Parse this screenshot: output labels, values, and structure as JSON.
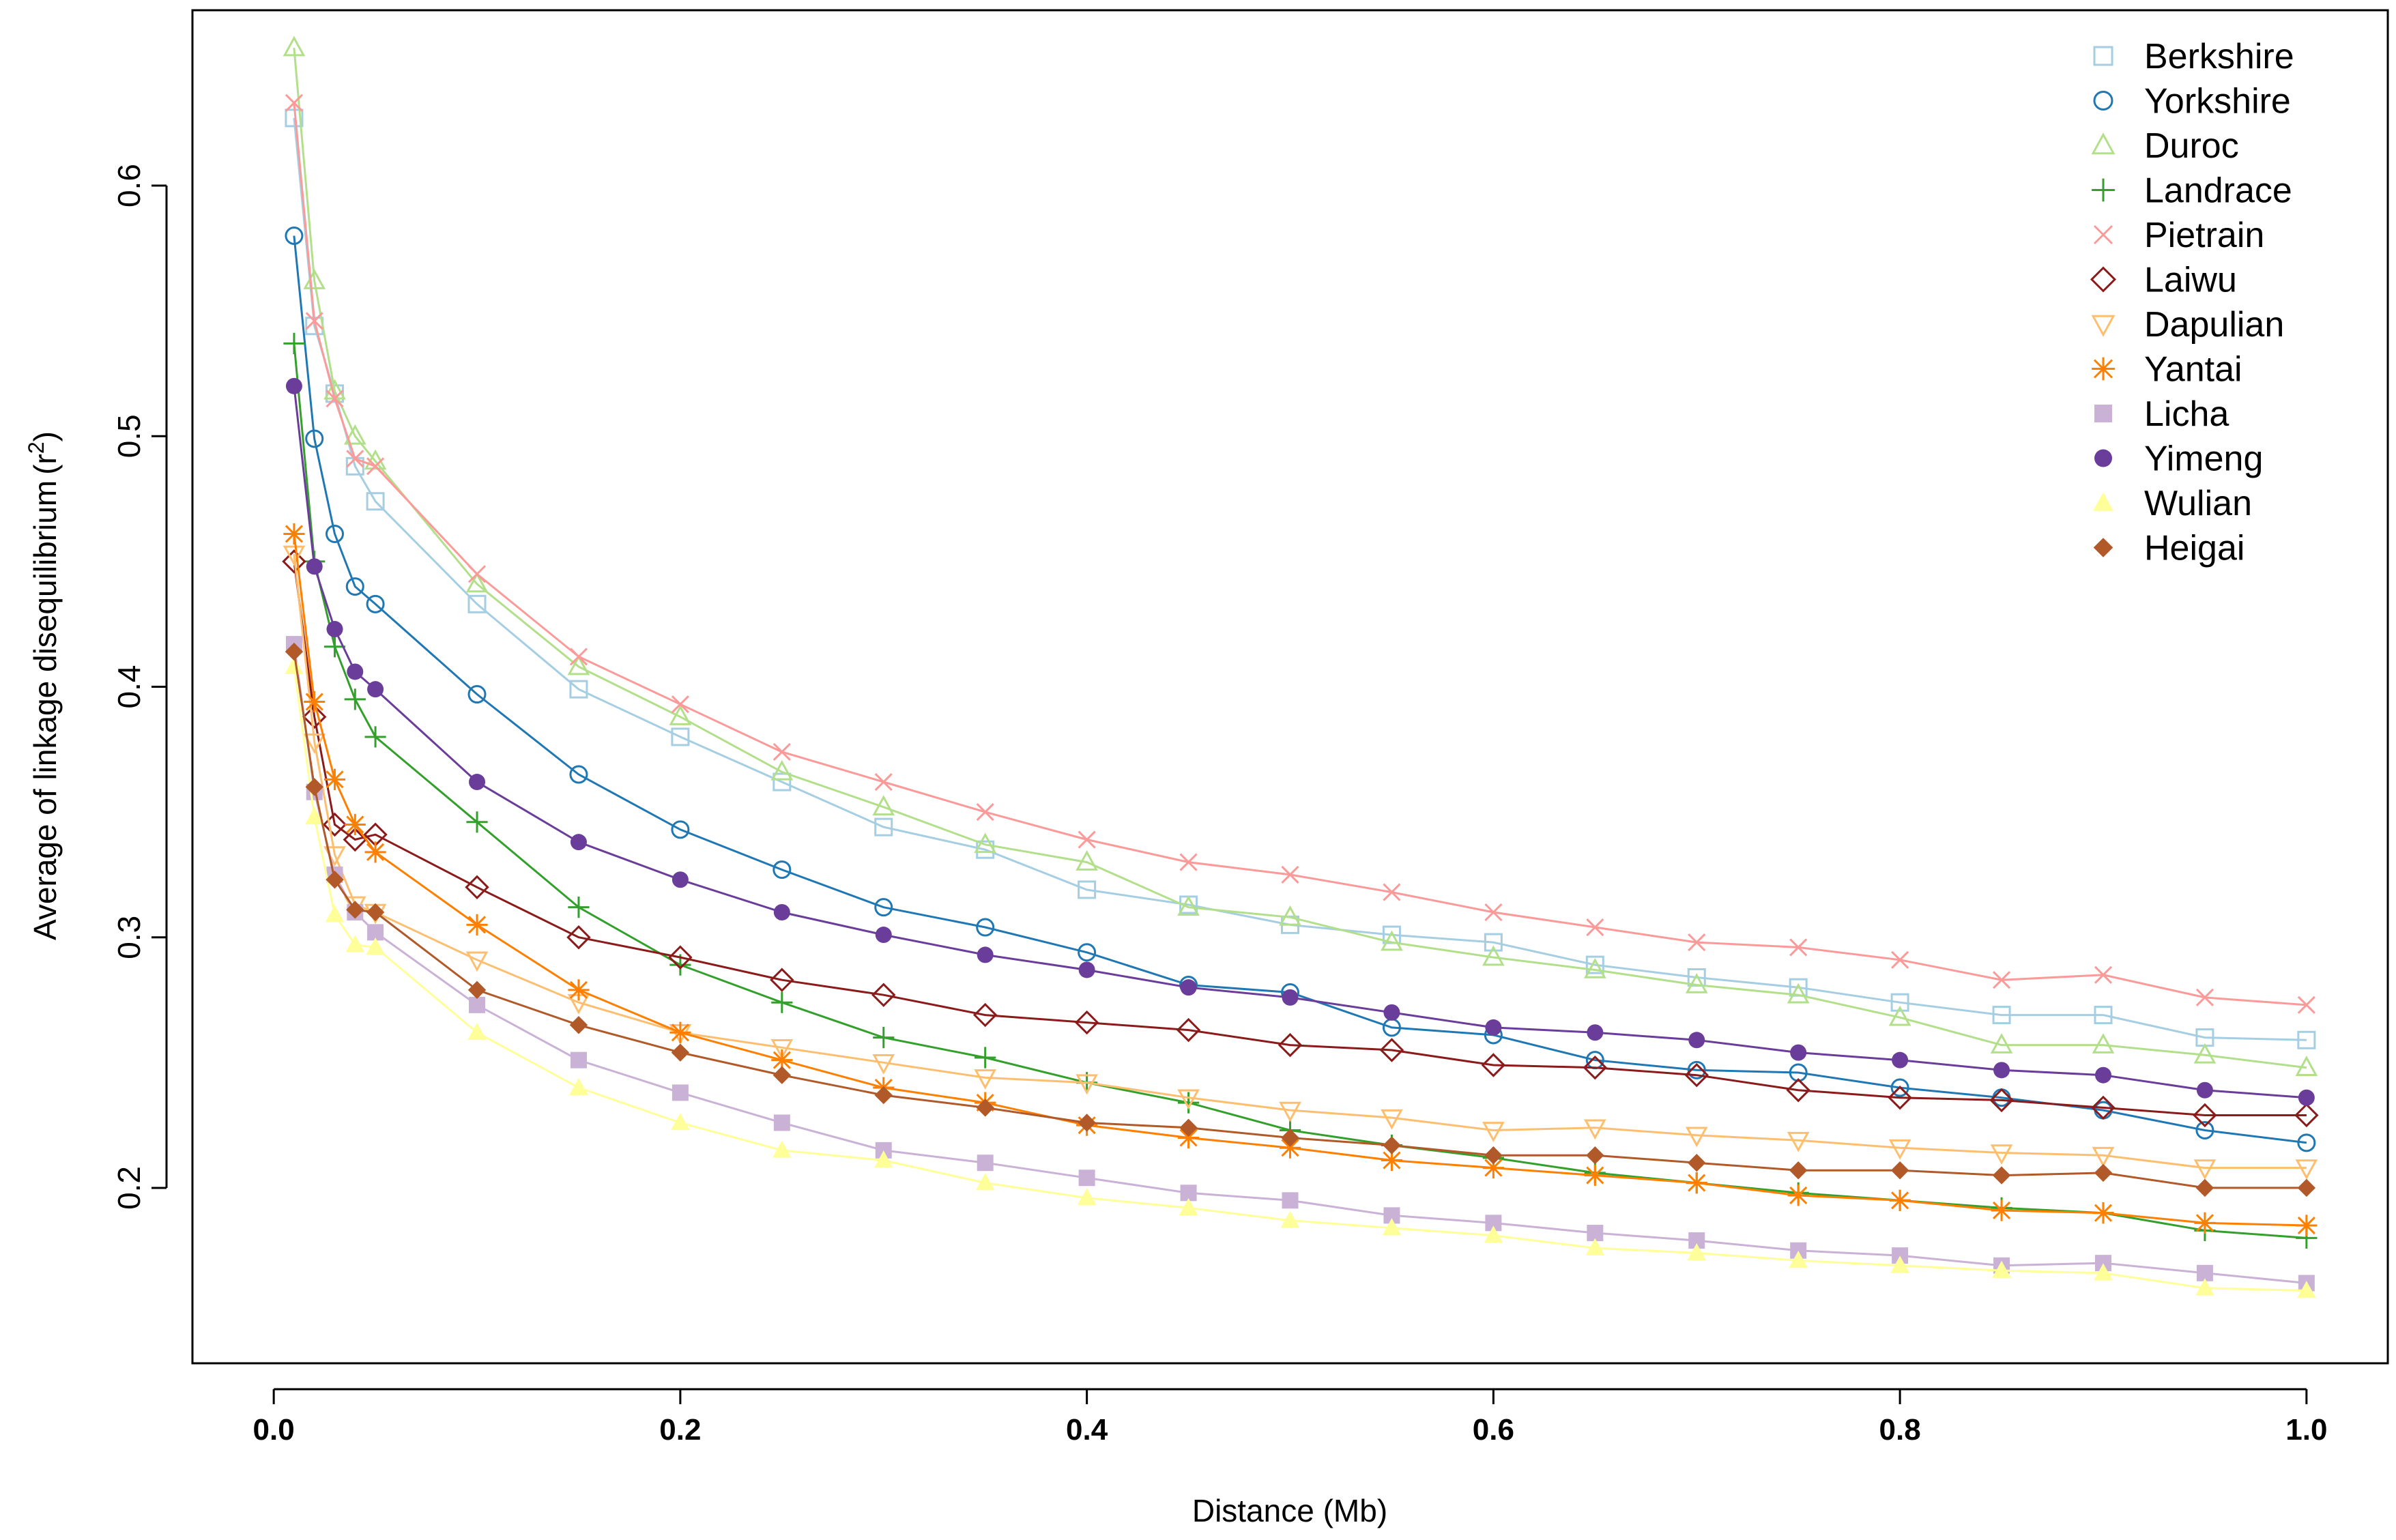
{
  "chart_data": {
    "type": "line",
    "title": "",
    "xlabel": "Distance (Mb)",
    "ylabel_main": "Average of linkage disequilibrium",
    "ylabel_symbol": "(r",
    "ylabel_sup": "2",
    "ylabel_close": ")",
    "xlim": [
      -0.04,
      1.04
    ],
    "ylim": [
      0.13,
      0.67
    ],
    "xticks": [
      0.0,
      0.2,
      0.4,
      0.6,
      0.8,
      1.0
    ],
    "xtick_labels": [
      "0.0",
      "0.2",
      "0.4",
      "0.6",
      "0.8",
      "1.0"
    ],
    "yticks": [
      0.2,
      0.3,
      0.4,
      0.5,
      0.6
    ],
    "ytick_labels": [
      "0.2",
      "0.3",
      "0.4",
      "0.5",
      "0.6"
    ],
    "legend_position": "top-right",
    "grid": false,
    "x": [
      0.01,
      0.02,
      0.03,
      0.04,
      0.05,
      0.1,
      0.15,
      0.2,
      0.25,
      0.3,
      0.35,
      0.4,
      0.45,
      0.5,
      0.55,
      0.6,
      0.65,
      0.7,
      0.75,
      0.8,
      0.85,
      0.9,
      0.95,
      1.0
    ],
    "series": [
      {
        "name": "Berkshire",
        "color": "#a6cee3",
        "marker": "square-open",
        "values": [
          0.627,
          0.544,
          0.517,
          0.488,
          0.474,
          0.433,
          0.399,
          0.38,
          0.362,
          0.344,
          0.335,
          0.319,
          0.313,
          0.305,
          0.301,
          0.298,
          0.289,
          0.284,
          0.28,
          0.274,
          0.269,
          0.269,
          0.26,
          0.259
        ]
      },
      {
        "name": "Yorkshire",
        "color": "#1f78b4",
        "marker": "circle-open",
        "values": [
          0.58,
          0.499,
          0.461,
          0.44,
          0.433,
          0.397,
          0.365,
          0.343,
          0.327,
          0.312,
          0.304,
          0.294,
          0.281,
          0.278,
          0.264,
          0.261,
          0.251,
          0.247,
          0.246,
          0.24,
          0.236,
          0.231,
          0.223,
          0.218
        ]
      },
      {
        "name": "Duroc",
        "color": "#b2df8a",
        "marker": "triangle-open",
        "values": [
          0.655,
          0.562,
          0.518,
          0.5,
          0.49,
          0.441,
          0.408,
          0.388,
          0.366,
          0.352,
          0.337,
          0.33,
          0.312,
          0.308,
          0.298,
          0.292,
          0.287,
          0.281,
          0.277,
          0.268,
          0.257,
          0.257,
          0.253,
          0.248
        ]
      },
      {
        "name": "Landrace",
        "color": "#33a02c",
        "marker": "plus",
        "values": [
          0.537,
          0.45,
          0.416,
          0.395,
          0.38,
          0.346,
          0.312,
          0.289,
          0.274,
          0.26,
          0.252,
          0.242,
          0.234,
          0.223,
          0.217,
          0.212,
          0.206,
          0.202,
          0.198,
          0.195,
          0.192,
          0.19,
          0.183,
          0.18
        ]
      },
      {
        "name": "Pietrain",
        "color": "#fb9a99",
        "marker": "x",
        "values": [
          0.633,
          0.546,
          0.515,
          0.491,
          0.488,
          0.445,
          0.412,
          0.393,
          0.374,
          0.362,
          0.35,
          0.339,
          0.33,
          0.325,
          0.318,
          0.31,
          0.304,
          0.298,
          0.296,
          0.291,
          0.283,
          0.285,
          0.276,
          0.273
        ]
      },
      {
        "name": "Laiwu",
        "color": "#8b1a1a",
        "marker": "diamond-open",
        "values": [
          0.45,
          0.388,
          0.345,
          0.339,
          0.341,
          0.32,
          0.3,
          0.292,
          0.283,
          0.277,
          0.269,
          0.266,
          0.263,
          0.257,
          0.255,
          0.249,
          0.248,
          0.245,
          0.239,
          0.236,
          0.235,
          0.232,
          0.229,
          0.229
        ]
      },
      {
        "name": "Dapulian",
        "color": "#fdbf6f",
        "marker": "triangle-down-open",
        "values": [
          0.453,
          0.378,
          0.333,
          0.313,
          0.31,
          0.291,
          0.274,
          0.262,
          0.256,
          0.25,
          0.244,
          0.242,
          0.236,
          0.231,
          0.228,
          0.223,
          0.224,
          0.221,
          0.219,
          0.216,
          0.214,
          0.213,
          0.208,
          0.208
        ]
      },
      {
        "name": "Yantai",
        "color": "#ff7f00",
        "marker": "asterisk",
        "values": [
          0.461,
          0.394,
          0.363,
          0.345,
          0.334,
          0.305,
          0.279,
          0.262,
          0.251,
          0.24,
          0.234,
          0.225,
          0.22,
          0.216,
          0.211,
          0.208,
          0.205,
          0.202,
          0.197,
          0.195,
          0.191,
          0.19,
          0.186,
          0.185
        ]
      },
      {
        "name": "Licha",
        "color": "#cab2d6",
        "marker": "square-filled",
        "values": [
          0.417,
          0.358,
          0.325,
          0.31,
          0.302,
          0.273,
          0.251,
          0.238,
          0.226,
          0.215,
          0.21,
          0.204,
          0.198,
          0.195,
          0.189,
          0.186,
          0.182,
          0.179,
          0.175,
          0.173,
          0.169,
          0.17,
          0.166,
          0.162
        ]
      },
      {
        "name": "Yimeng",
        "color": "#6a3d9a",
        "marker": "circle-filled",
        "values": [
          0.52,
          0.448,
          0.423,
          0.406,
          0.399,
          0.362,
          0.338,
          0.323,
          0.31,
          0.301,
          0.293,
          0.287,
          0.28,
          0.276,
          0.27,
          0.264,
          0.262,
          0.259,
          0.254,
          0.251,
          0.247,
          0.245,
          0.239,
          0.236
        ]
      },
      {
        "name": "Wulian",
        "color": "#ffff99",
        "marker": "triangle-filled",
        "values": [
          0.408,
          0.348,
          0.309,
          0.297,
          0.296,
          0.262,
          0.24,
          0.226,
          0.215,
          0.211,
          0.202,
          0.196,
          0.192,
          0.187,
          0.184,
          0.181,
          0.176,
          0.174,
          0.171,
          0.169,
          0.167,
          0.166,
          0.16,
          0.159
        ]
      },
      {
        "name": "Heigai",
        "color": "#b15928",
        "marker": "diamond-filled",
        "values": [
          0.414,
          0.36,
          0.323,
          0.311,
          0.31,
          0.279,
          0.265,
          0.254,
          0.245,
          0.237,
          0.232,
          0.226,
          0.224,
          0.22,
          0.217,
          0.213,
          0.213,
          0.21,
          0.207,
          0.207,
          0.205,
          0.206,
          0.2,
          0.2
        ]
      }
    ]
  }
}
